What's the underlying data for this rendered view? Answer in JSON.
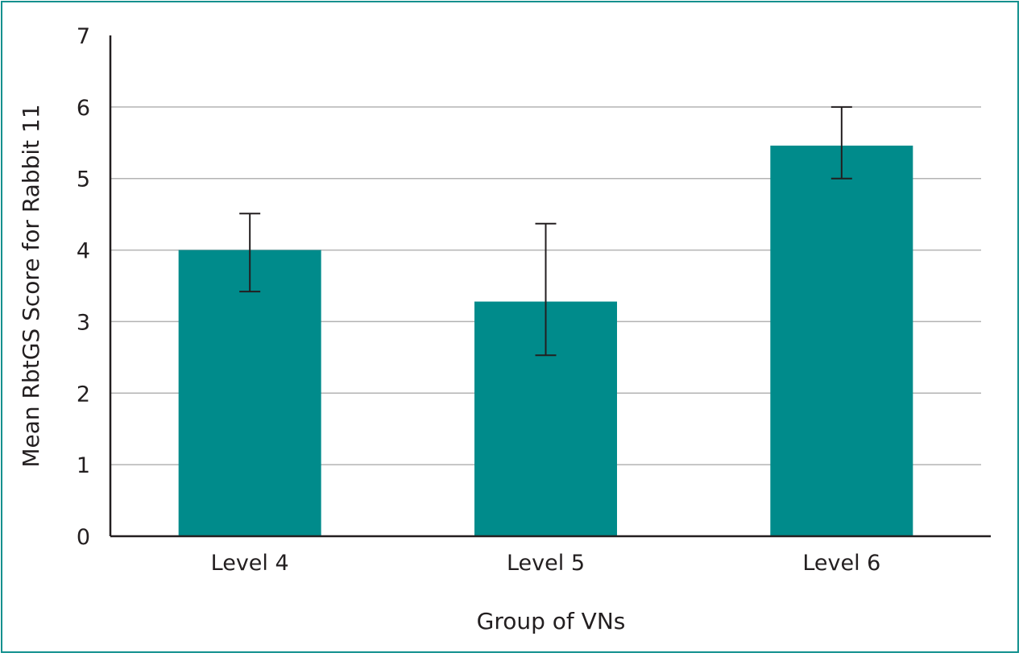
{
  "chart_data": {
    "type": "bar",
    "title": "",
    "xlabel": "Group of VNs",
    "ylabel": "Mean RbtGS Score for Rabbit 11",
    "categories": [
      "Level 4",
      "Level 5",
      "Level 6"
    ],
    "values": [
      4.0,
      3.28,
      5.46
    ],
    "error_low": [
      3.42,
      2.53,
      5.0
    ],
    "error_high": [
      4.51,
      4.37,
      6.0
    ],
    "ylim": [
      0,
      7
    ],
    "yticks": [
      "0",
      "1",
      "2",
      "3",
      "4",
      "5",
      "6",
      "7"
    ],
    "grid": true,
    "bar_color": "#008b8b",
    "grid_color": "#b3b3b3",
    "axis_color": "#231f20",
    "border_color": "#12908e"
  }
}
